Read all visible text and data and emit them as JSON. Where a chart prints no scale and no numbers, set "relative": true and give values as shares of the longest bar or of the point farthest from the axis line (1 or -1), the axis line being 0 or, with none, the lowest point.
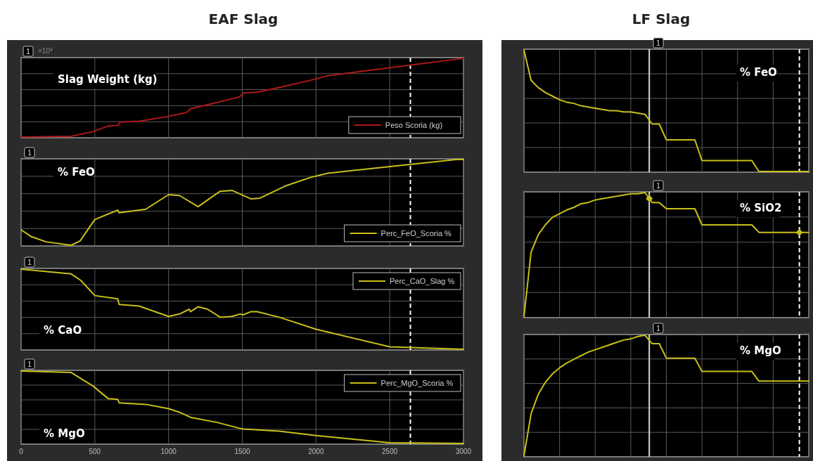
{
  "chart_data": [
    {
      "type": "line",
      "title": "Slag Weight (kg)",
      "relative": true,
      "xlim": [
        0,
        3000
      ],
      "xticks": [
        0,
        500,
        1000,
        1500,
        2000,
        2500,
        3000
      ],
      "tick_labels": false,
      "grid": true,
      "legend": "bottom right",
      "annotations": [
        "EAF Slag",
        "×10$^{4}$",
        "1"
      ],
      "ref_lines": [
        {
          "axis": "x",
          "value": 2640,
          "color": "#ffffff",
          "line_style": "dashed"
        }
      ],
      "series": [
        {
          "name": "Peso Scoria (kg)",
          "color": "#b01818",
          "x": [
            0,
            340,
            490,
            590,
            660,
            670,
            800,
            990,
            1120,
            1150,
            1330,
            1480,
            1510,
            1600,
            1750,
            1960,
            2080,
            2960,
            3000
          ],
          "values": [
            0,
            0.01,
            0.07,
            0.14,
            0.15,
            0.19,
            0.2,
            0.26,
            0.31,
            0.36,
            0.44,
            0.51,
            0.56,
            0.57,
            0.63,
            0.72,
            0.78,
            0.99,
            1
          ]
        }
      ]
    },
    {
      "type": "line",
      "title": "% FeO",
      "relative": true,
      "xlim": [
        0,
        3000
      ],
      "xticks": [
        0,
        500,
        1000,
        1500,
        2000,
        2500,
        3000
      ],
      "tick_labels": false,
      "grid": true,
      "legend": "bottom right",
      "annotations": [
        "1"
      ],
      "ref_lines": [
        {
          "axis": "x",
          "value": 2640,
          "color": "#ffffff",
          "line_style": "dashed"
        }
      ],
      "series": [
        {
          "name": "Perc_FeO_Scoria %",
          "color": "#c8c018",
          "x": [
            0,
            70,
            170,
            340,
            400,
            500,
            655,
            665,
            845,
            1000,
            1075,
            1200,
            1350,
            1430,
            1560,
            1620,
            1790,
            1960,
            2080,
            2950,
            3000
          ],
          "values": [
            0.18,
            0.1,
            0.04,
            0,
            0.05,
            0.3,
            0.41,
            0.38,
            0.42,
            0.59,
            0.58,
            0.45,
            0.63,
            0.64,
            0.54,
            0.55,
            0.69,
            0.79,
            0.84,
            1,
            1
          ]
        }
      ]
    },
    {
      "type": "line",
      "title": "% CaO",
      "relative": true,
      "xlim": [
        0,
        3000
      ],
      "xticks": [
        0,
        500,
        1000,
        1500,
        2000,
        2500,
        3000
      ],
      "tick_labels": false,
      "grid": true,
      "legend": "top right",
      "annotations": [
        "1"
      ],
      "ref_lines": [
        {
          "axis": "x",
          "value": 2640,
          "color": "#ffffff",
          "line_style": "dashed"
        }
      ],
      "series": [
        {
          "name": "Perc_CaO_Slag %",
          "color": "#c8c018",
          "x": [
            0,
            340,
            405,
            500,
            655,
            665,
            800,
            1000,
            1075,
            1140,
            1150,
            1200,
            1265,
            1350,
            1430,
            1485,
            1505,
            1560,
            1600,
            1750,
            2000,
            2500,
            3000
          ],
          "values": [
            1,
            0.94,
            0.86,
            0.67,
            0.63,
            0.56,
            0.54,
            0.41,
            0.44,
            0.5,
            0.47,
            0.53,
            0.5,
            0.4,
            0.41,
            0.44,
            0.43,
            0.47,
            0.47,
            0.4,
            0.25,
            0.03,
            0
          ]
        }
      ]
    },
    {
      "type": "line",
      "title": "% MgO",
      "relative": true,
      "xlim": [
        0,
        3000
      ],
      "xticks": [
        0,
        500,
        1000,
        1500,
        2000,
        2500,
        3000
      ],
      "tick_labels": "x",
      "grid": true,
      "legend": "top right",
      "annotations": [
        "1"
      ],
      "ref_lines": [
        {
          "axis": "x",
          "value": 2640,
          "color": "#ffffff",
          "line_style": "dashed"
        }
      ],
      "series": [
        {
          "name": "Perc_MgO_Scoria %",
          "color": "#c8c018",
          "x": [
            0,
            340,
            490,
            590,
            655,
            665,
            845,
            1000,
            1075,
            1150,
            1330,
            1480,
            1510,
            1750,
            2000,
            2500,
            3000
          ],
          "values": [
            1,
            0.98,
            0.79,
            0.62,
            0.61,
            0.56,
            0.54,
            0.48,
            0.43,
            0.36,
            0.29,
            0.21,
            0.2,
            0.17,
            0.11,
            0.01,
            0
          ]
        }
      ]
    },
    {
      "type": "line",
      "title": "% FeO",
      "relative": true,
      "tick_labels": false,
      "grid": true,
      "annotations": [
        "LF Slag",
        "1"
      ],
      "categories": [
        null,
        null,
        null,
        null,
        null,
        null,
        null,
        null,
        null,
        null,
        null,
        null,
        null,
        null,
        null,
        null,
        null,
        null,
        null,
        null,
        null,
        null,
        null,
        null,
        null,
        null,
        null,
        null,
        null,
        null,
        null,
        null,
        null,
        null,
        null,
        null,
        null,
        null,
        null,
        null,
        null
      ],
      "series": [
        {
          "color": "#c8c018",
          "values": [
            1,
            0.75,
            0.69,
            0.65,
            0.62,
            0.59,
            0.57,
            0.56,
            0.54,
            0.53,
            0.52,
            0.51,
            0.5,
            0.5,
            0.49,
            0.49,
            0.48,
            0.47,
            0.39,
            0.39,
            0.26,
            0.26,
            0.26,
            0.26,
            0.26,
            0.09,
            0.09,
            0.09,
            0.09,
            0.09,
            0.09,
            0.09,
            0.09,
            0,
            0,
            0,
            0,
            0,
            0,
            0,
            0
          ]
        }
      ]
    },
    {
      "type": "line",
      "title": "% SiO2",
      "relative": true,
      "tick_labels": false,
      "grid": true,
      "annotations": [
        "1"
      ],
      "categories": [
        null,
        null,
        null,
        null,
        null,
        null,
        null,
        null,
        null,
        null,
        null,
        null,
        null,
        null,
        null,
        null,
        null,
        null,
        null,
        null,
        null,
        null,
        null,
        null,
        null,
        null,
        null,
        null,
        null,
        null,
        null,
        null,
        null,
        null,
        null,
        null,
        null,
        null,
        null,
        null,
        null
      ],
      "series": [
        {
          "color": "#c8c018",
          "values": [
            0,
            0.52,
            0.66,
            0.74,
            0.8,
            0.83,
            0.86,
            0.88,
            0.91,
            0.92,
            0.94,
            0.95,
            0.96,
            0.97,
            0.98,
            0.99,
            0.99,
            1,
            0.92,
            0.92,
            0.87,
            0.87,
            0.87,
            0.87,
            0.87,
            0.74,
            0.74,
            0.74,
            0.74,
            0.74,
            0.74,
            0.74,
            0.74,
            0.68,
            0.68,
            0.68,
            0.68,
            0.68,
            0.68,
            0.68,
            0.68
          ]
        }
      ]
    },
    {
      "type": "line",
      "title": "% MgO",
      "relative": true,
      "tick_labels": false,
      "grid": true,
      "annotations": [
        "1"
      ],
      "categories": [
        null,
        null,
        null,
        null,
        null,
        null,
        null,
        null,
        null,
        null,
        null,
        null,
        null,
        null,
        null,
        null,
        null,
        null,
        null,
        null,
        null,
        null,
        null,
        null,
        null,
        null,
        null,
        null,
        null,
        null,
        null,
        null,
        null,
        null,
        null,
        null,
        null,
        null,
        null,
        null,
        null
      ],
      "series": [
        {
          "color": "#c8c018",
          "values": [
            0,
            0.35,
            0.51,
            0.61,
            0.68,
            0.73,
            0.77,
            0.8,
            0.83,
            0.86,
            0.88,
            0.9,
            0.92,
            0.94,
            0.96,
            0.97,
            0.99,
            1,
            0.93,
            0.93,
            0.81,
            0.81,
            0.81,
            0.81,
            0.81,
            0.7,
            0.7,
            0.7,
            0.7,
            0.7,
            0.7,
            0.7,
            0.7,
            0.62,
            0.62,
            0.62,
            0.62,
            0.62,
            0.62,
            0.62,
            0.62
          ]
        }
      ]
    }
  ]
}
